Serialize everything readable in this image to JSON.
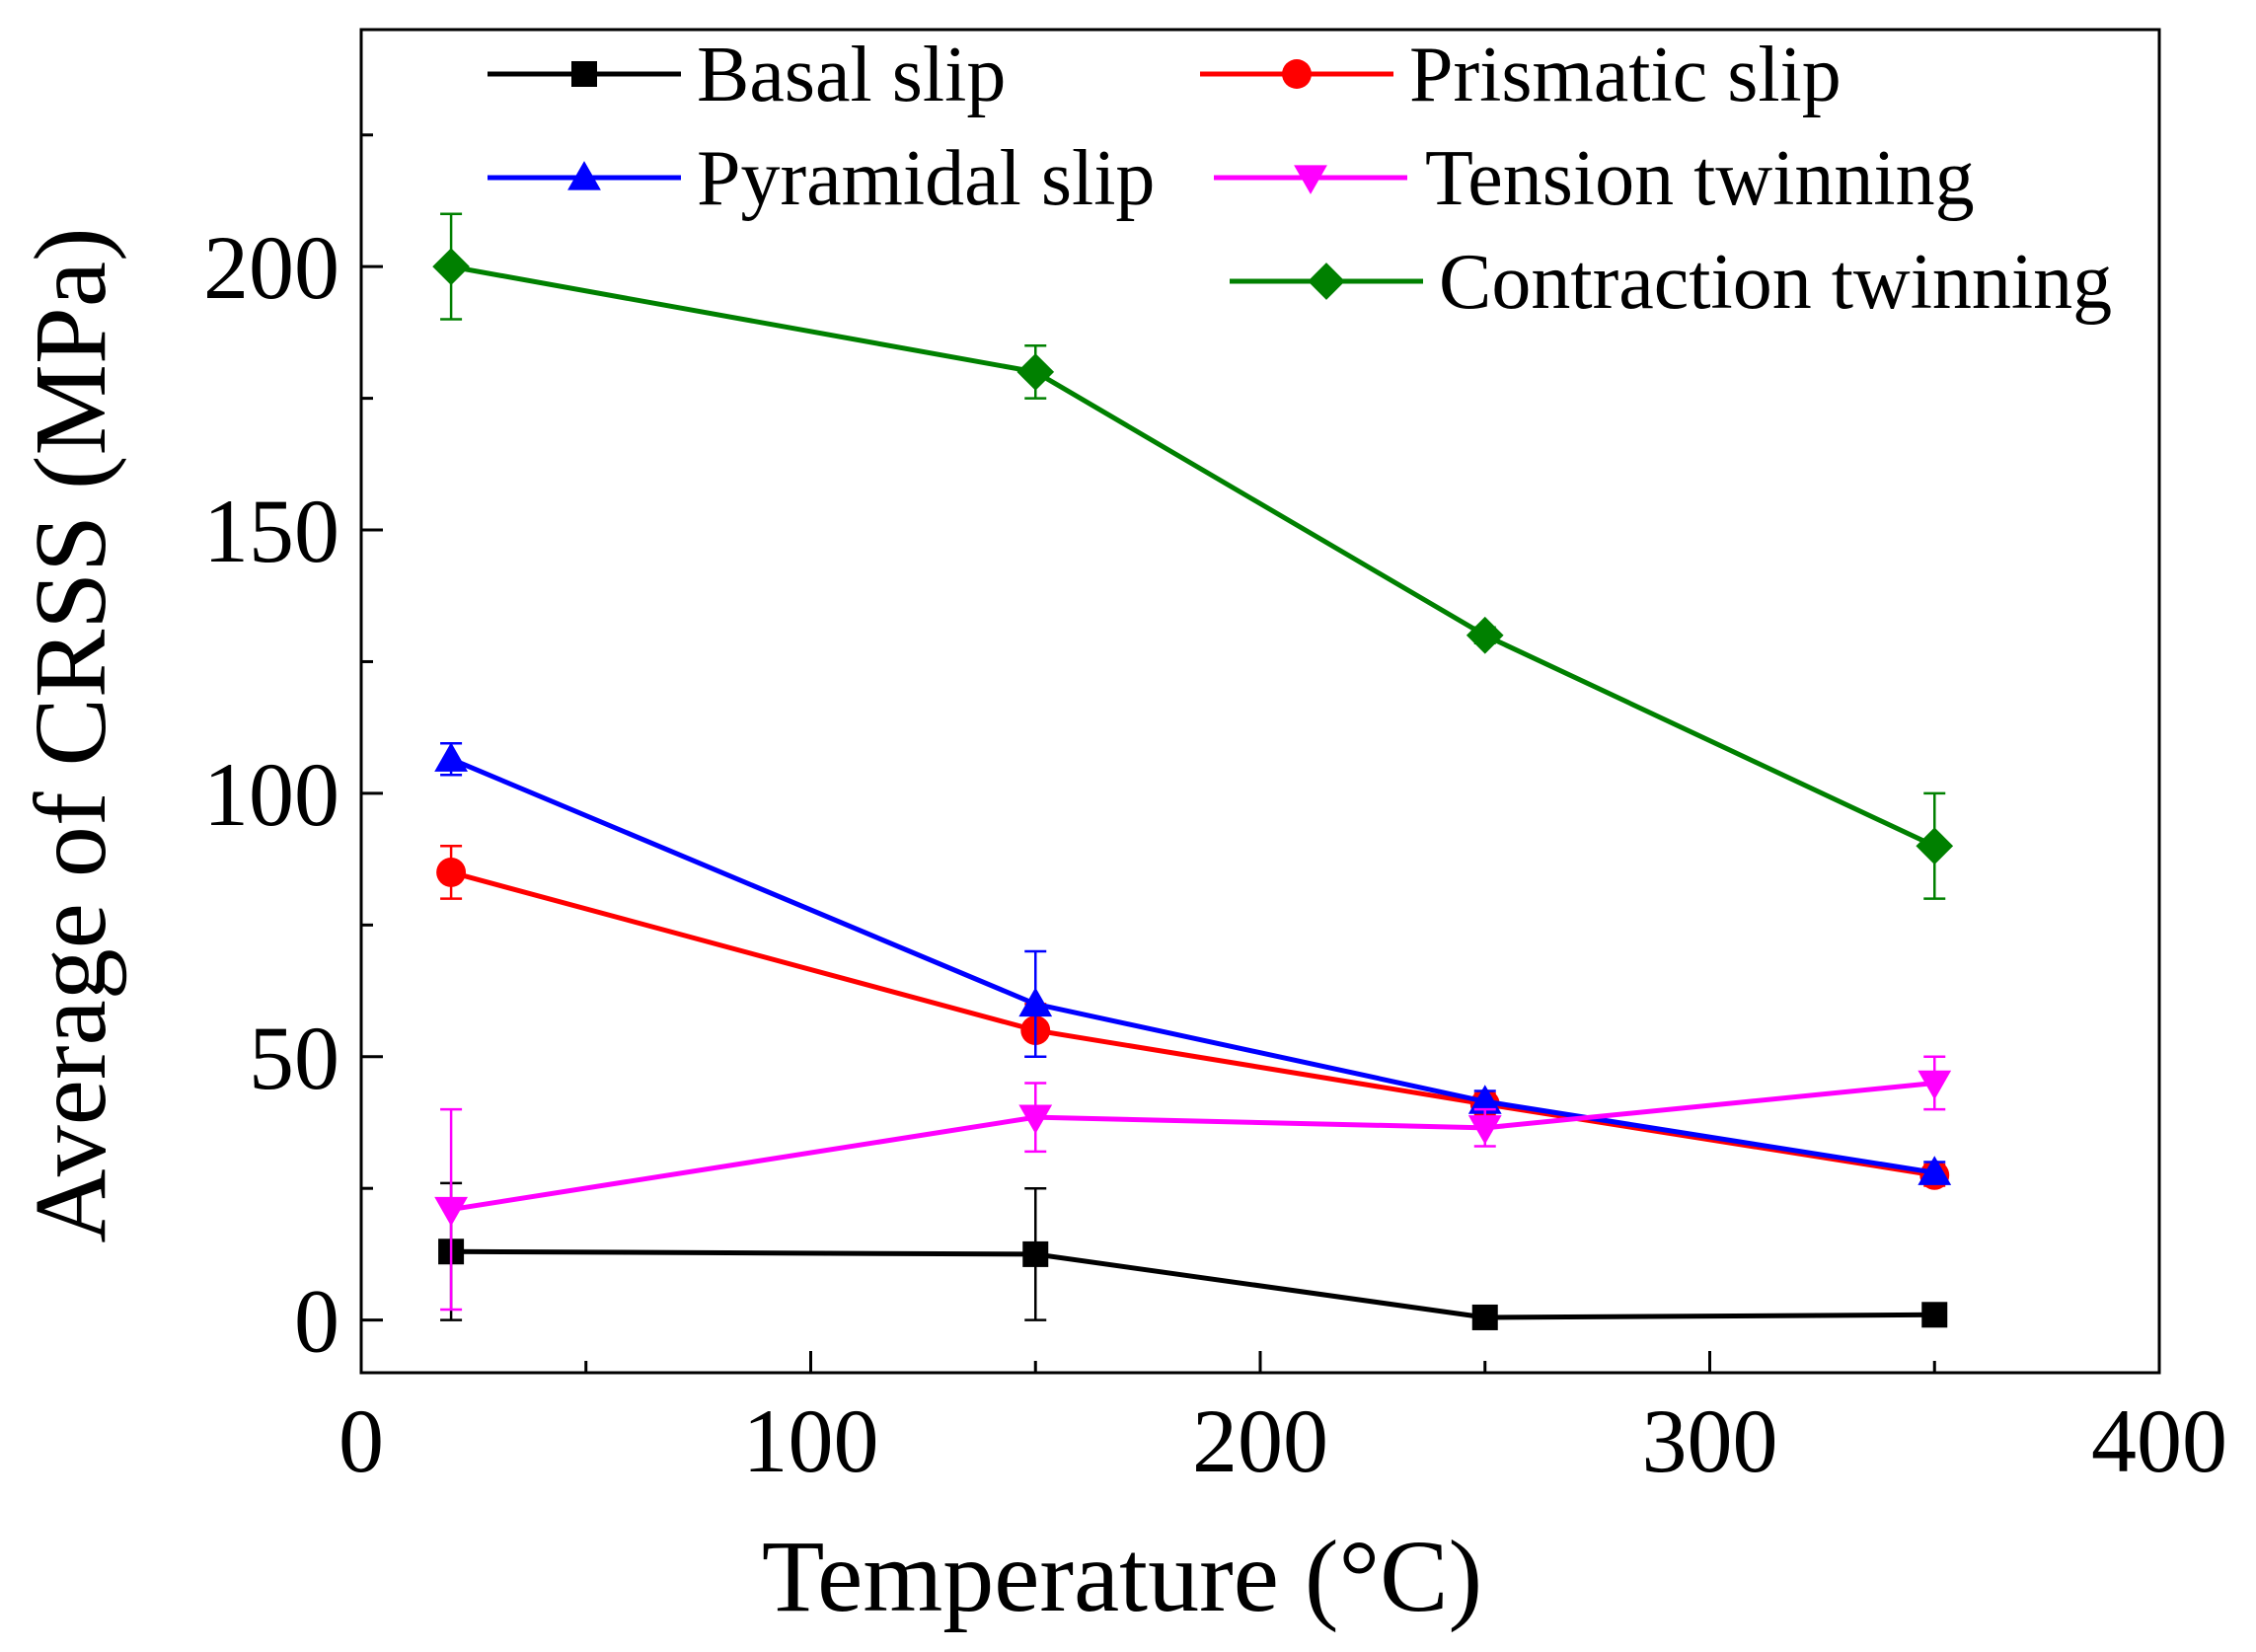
{
  "chart_data": {
    "type": "line",
    "title": "",
    "xlabel": "Temperature (°C)",
    "ylabel": "Average of CRSS (MPa)",
    "xlim": [
      0,
      400
    ],
    "ylim": [
      -10,
      245
    ],
    "xticks": [
      0,
      100,
      200,
      300,
      400
    ],
    "xtick_labels": [
      "0",
      "100",
      "200",
      "300",
      "400"
    ],
    "yticks": [
      0,
      50,
      100,
      150,
      200
    ],
    "ytick_labels": [
      "0",
      "50",
      "100",
      "150",
      "200"
    ],
    "grid": false,
    "legend_position": "top",
    "x": [
      20,
      150,
      250,
      350
    ],
    "series": [
      {
        "name": "Basal slip",
        "color": "#000000",
        "marker": "square",
        "values": [
          13,
          12.5,
          0.5,
          1
        ],
        "errors": [
          [
            13,
            13
          ],
          [
            12.5,
            12.5
          ],
          [
            0.5,
            0.5
          ],
          [
            1,
            1
          ]
        ]
      },
      {
        "name": "Prismatic slip",
        "color": "#ff0000",
        "marker": "circle",
        "values": [
          85,
          55,
          41,
          27.5
        ],
        "errors": [
          [
            5,
            5
          ],
          [
            5,
            5
          ],
          [
            2,
            2
          ],
          [
            2,
            2
          ]
        ]
      },
      {
        "name": "Pyramidal slip",
        "color": "#0000ff",
        "marker": "triangle-up",
        "values": [
          106.5,
          60,
          41.5,
          28
        ],
        "errors": [
          [
            3,
            3
          ],
          [
            10,
            10
          ],
          [
            2,
            2
          ],
          [
            2,
            2
          ]
        ]
      },
      {
        "name": "Tension twinning",
        "color": "#ff00ff",
        "marker": "triangle-down",
        "values": [
          21,
          38.5,
          36.5,
          45
        ],
        "errors": [
          [
            19,
            19
          ],
          [
            6.5,
            6.5
          ],
          [
            3.5,
            3.5
          ],
          [
            5,
            5
          ]
        ]
      },
      {
        "name": "Contraction twinning",
        "color": "#008000",
        "marker": "diamond",
        "values": [
          200,
          180,
          130,
          90
        ],
        "errors": [
          [
            10,
            10
          ],
          [
            5,
            5
          ],
          [
            1.5,
            1.5
          ],
          [
            10,
            10
          ]
        ]
      }
    ]
  }
}
